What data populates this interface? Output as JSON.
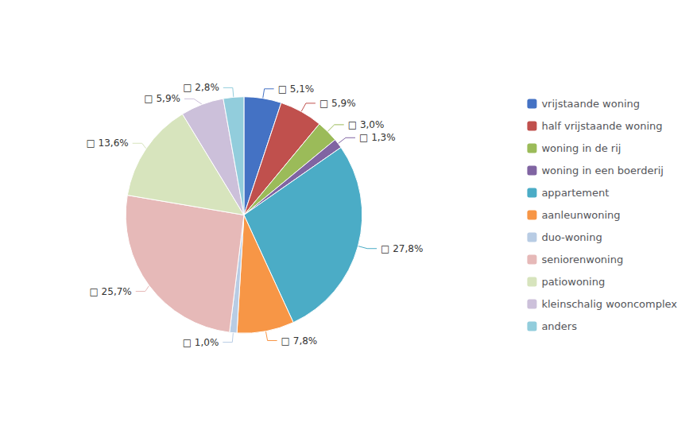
{
  "chart_data": {
    "type": "pie",
    "categories": [
      "vrijstaande woning",
      "half vrijstaande woning",
      "woning in de rij",
      "woning in een boerderij",
      "appartement",
      "aanleunwoning",
      "duo-woning",
      "seniorenwoning",
      "patiowoning",
      "kleinschalig wooncomplex",
      "anders"
    ],
    "values": [
      5.1,
      5.9,
      3.0,
      1.3,
      27.8,
      7.8,
      1.0,
      25.7,
      13.6,
      5.9,
      2.8
    ],
    "value_labels": [
      "□ 5,1%",
      "□ 5,9%",
      "□ 3,0%",
      "□ 1,3%",
      "□ 27,8%",
      "□ 7,8%",
      "□ 1,0%",
      "□ 25,7%",
      "□ 13,6%",
      "□ 5,9%",
      "□ 2,8%"
    ],
    "colors": [
      "#4472C4",
      "#C0504D",
      "#9BBB59",
      "#8064A2",
      "#4BACC6",
      "#F79646",
      "#B8CCE4",
      "#E6B9B8",
      "#D7E4BD",
      "#CCC0DA",
      "#92CDDC"
    ],
    "data_labels": true,
    "legend": "right"
  }
}
